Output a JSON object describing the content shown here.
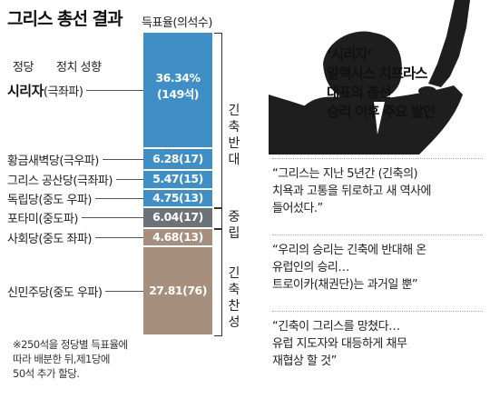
{
  "header": {
    "title": "그리스 총선 결과",
    "vote_header": "득표율(의석수)",
    "col_party": "정당",
    "col_stance": "정치 성향"
  },
  "chart_data": {
    "type": "bar",
    "stacked": true,
    "orientation": "vertical",
    "categories": [
      "시리자(극좌파)",
      "황금새벽당(극우파)",
      "그리스 공산당(극좌파)",
      "독립당(중도 우파)",
      "포타미(중도파)",
      "사회당(중도 좌파)",
      "신민주당(중도 우파)"
    ],
    "parties": [
      {
        "name": "시리자",
        "stance": "(극좌파)",
        "share": 36.34,
        "seats": 149,
        "label": "36.34%",
        "seat_label": "(149석)",
        "group": "anti",
        "color": "#3f8fc6"
      },
      {
        "name": "황금새벽당",
        "stance": "(극우파)",
        "share": 6.28,
        "seats": 17,
        "label": "6.28(17)",
        "group": "anti",
        "color": "#3f8fc6"
      },
      {
        "name": "그리스 공산당",
        "stance": "(극좌파)",
        "share": 5.47,
        "seats": 15,
        "label": "5.47(15)",
        "group": "anti",
        "color": "#3f8fc6"
      },
      {
        "name": "독립당",
        "stance": "(중도 우파)",
        "share": 4.75,
        "seats": 13,
        "label": "4.75(13)",
        "group": "anti",
        "color": "#3f8fc6"
      },
      {
        "name": "포타미",
        "stance": "(중도파)",
        "share": 6.04,
        "seats": 17,
        "label": "6.04(17)",
        "group": "neutral",
        "color": "#6d7278"
      },
      {
        "name": "사회당",
        "stance": "(중도 좌파)",
        "share": 4.68,
        "seats": 13,
        "label": "4.68(13)",
        "group": "pro",
        "color": "#a78f7e"
      },
      {
        "name": "신민주당",
        "stance": "(중도 우파)",
        "share": 27.81,
        "seats": 76,
        "label": "27.81(76)",
        "group": "pro",
        "color": "#a78f7e"
      }
    ],
    "groups": {
      "anti": [
        "긴축",
        "반대"
      ],
      "neutral": [
        "중립"
      ],
      "pro": [
        "긴축",
        "찬성"
      ]
    }
  },
  "note": [
    "※250석을 정당별 득표율에",
    "따라 배분한 뒤,제1당에",
    "50석 추가 할당."
  ],
  "photo_caption": [
    "‘시리자’",
    "알렉시스 치프라스",
    "대표의 총선",
    "승리 이후 주요 발언"
  ],
  "quotes": [
    [
      "“그리스는 지난 5년간 (긴축의)",
      "치욕과 고통을 뒤로하고 새 역사에",
      "들어섰다.”"
    ],
    [
      "“우리의 승리는 긴축에 반대해 온",
      "유럽인의 승리…",
      "트로이카(채권단)는 과거일 뿐”"
    ],
    [
      "“긴축이 그리스를 망쳤다…",
      "유럽 지도자와 대등하게 채무",
      "재협상 할 것”"
    ]
  ]
}
